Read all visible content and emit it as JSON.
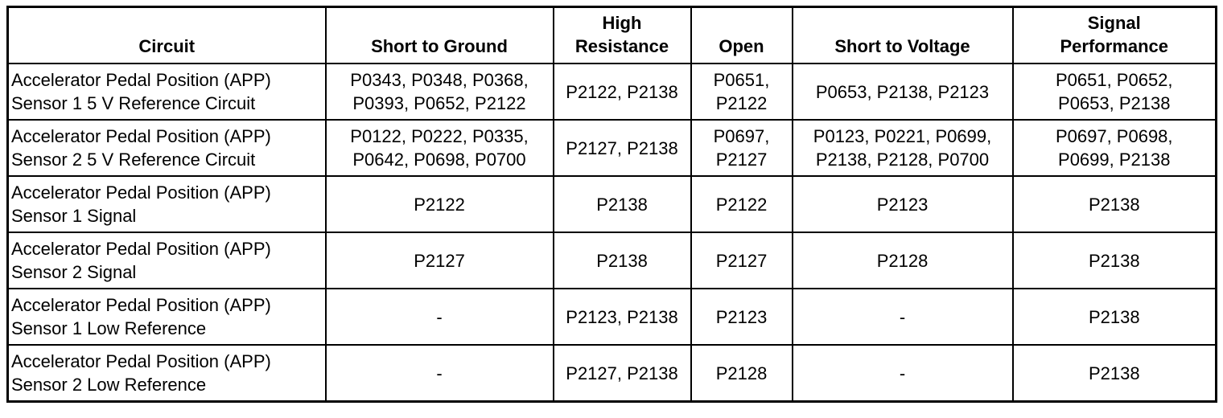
{
  "headers": [
    "Circuit",
    "Short to Ground",
    "High\nResistance",
    "Open",
    "Short to Voltage",
    "Signal\nPerformance"
  ],
  "rows": [
    [
      "Accelerator Pedal Position (APP)\nSensor 1 5 V Reference Circuit",
      "P0343, P0348, P0368,\nP0393, P0652, P2122",
      "P2122, P2138",
      "P0651,\nP2122",
      "P0653, P2138, P2123",
      "P0651, P0652,\nP0653, P2138"
    ],
    [
      "Accelerator Pedal Position (APP)\nSensor 2 5 V Reference Circuit",
      "P0122, P0222, P0335,\nP0642, P0698, P0700",
      "P2127, P2138",
      "P0697,\nP2127",
      "P0123, P0221, P0699,\nP2138, P2128, P0700",
      "P0697, P0698,\nP0699, P2138"
    ],
    [
      "Accelerator Pedal Position (APP)\nSensor 1 Signal",
      "P2122",
      "P2138",
      "P2122",
      "P2123",
      "P2138"
    ],
    [
      "Accelerator Pedal Position (APP)\nSensor 2 Signal",
      "P2127",
      "P2138",
      "P2127",
      "P2128",
      "P2138"
    ],
    [
      "Accelerator Pedal Position (APP)\nSensor 1 Low Reference",
      "-",
      "P2123, P2138",
      "P2123",
      "-",
      "P2138"
    ],
    [
      "Accelerator Pedal Position (APP)\nSensor 2 Low Reference",
      "-",
      "P2127, P2138",
      "P2128",
      "-",
      "P2138"
    ]
  ]
}
